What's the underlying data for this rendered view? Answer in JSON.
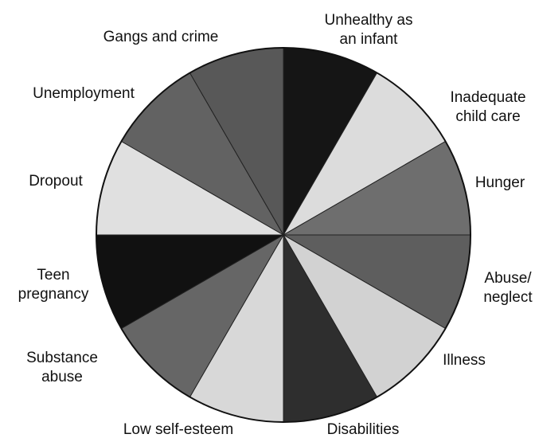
{
  "chart_data": {
    "type": "pie",
    "categories": [
      "Unhealthy as\nan infant",
      "Inadequate\nchild care",
      "Hunger",
      "Abuse/\nneglect",
      "Illness",
      "Disabilities",
      "Low self-esteem",
      "Substance\nabuse",
      "Teen\npregnancy",
      "Dropout",
      "Unemployment",
      "Gangs and crime"
    ],
    "values": [
      1,
      1,
      1,
      1,
      1,
      1,
      1,
      1,
      1,
      1,
      1,
      1
    ],
    "colors": [
      "#151515",
      "#dcdcdc",
      "#6e6e6e",
      "#5e5e5e",
      "#d2d2d2",
      "#2e2e2e",
      "#d8d8d8",
      "#666666",
      "#111111",
      "#e0e0e0",
      "#626262",
      "#585858"
    ]
  }
}
